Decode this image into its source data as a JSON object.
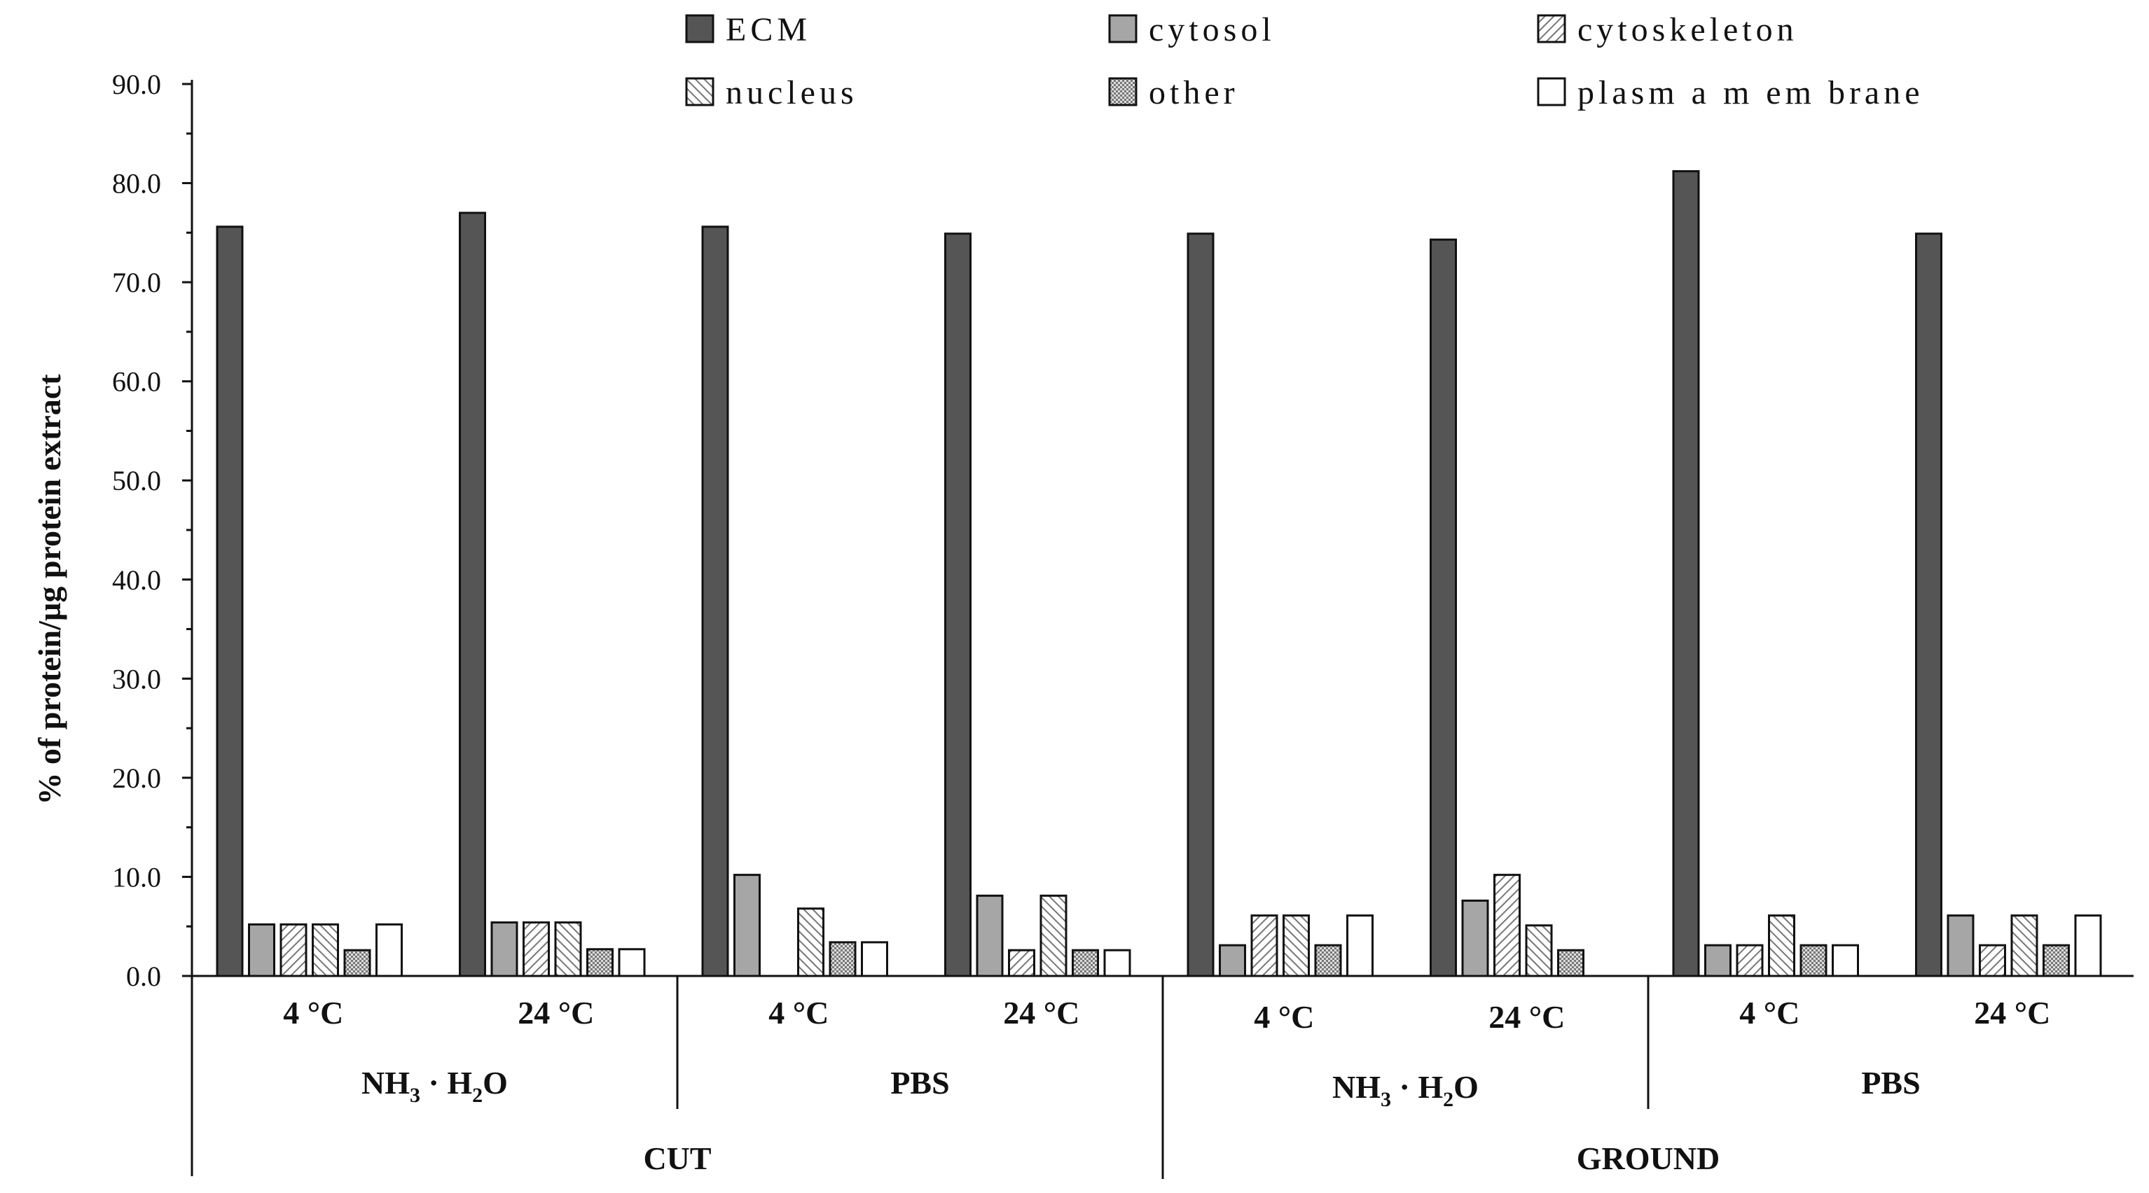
{
  "chart_data": {
    "type": "bar",
    "title": "",
    "xlabel": "",
    "ylabel": "% of protein/µg protein extract",
    "ylim": [
      0,
      90
    ],
    "yticks": [
      "0.0",
      "10.0",
      "20.0",
      "30.0",
      "40.0",
      "50.0",
      "60.0",
      "70.0",
      "80.0",
      "90.0"
    ],
    "grid": false,
    "legend_position": "top",
    "colors": {
      "ecm": "#555555",
      "cytosol": "#a6a6a6",
      "plasma": "#ffffff",
      "stroke": "#111111"
    },
    "categories": [
      "CUT NH3·H2O 4 °C",
      "CUT NH3·H2O 24 °C",
      "CUT PBS 4 °C",
      "CUT PBS 24 °C",
      "GROUND NH3·H2O 4 °C",
      "GROUND NH3·H2O 24 °C",
      "GROUND PBS 4 °C",
      "GROUND PBS 24 °C"
    ],
    "series": [
      {
        "name": "ECM",
        "pattern": "solid-dark",
        "values": [
          75.6,
          77.0,
          75.6,
          74.9,
          74.9,
          74.3,
          81.2,
          74.9
        ]
      },
      {
        "name": "cytosol",
        "pattern": "solid-gray",
        "values": [
          5.2,
          5.4,
          10.2,
          8.1,
          3.1,
          7.6,
          3.1,
          6.1
        ]
      },
      {
        "name": "cytoskeleton",
        "pattern": "diagonal",
        "values": [
          5.2,
          5.4,
          0.0,
          2.6,
          6.1,
          10.2,
          3.1,
          3.1
        ]
      },
      {
        "name": "nucleus",
        "pattern": "back-diagonal",
        "values": [
          5.2,
          5.4,
          6.8,
          8.1,
          6.1,
          5.1,
          6.1,
          6.1
        ]
      },
      {
        "name": "other",
        "pattern": "dots",
        "values": [
          2.6,
          2.7,
          3.4,
          2.6,
          3.1,
          2.6,
          3.1,
          3.1
        ]
      },
      {
        "name": "plasm a m em brane",
        "pattern": "white",
        "values": [
          5.2,
          2.7,
          3.4,
          2.6,
          6.1,
          0.0,
          3.1,
          6.1
        ]
      }
    ],
    "legend_labels": [
      "ECM",
      "cytosol",
      "cytoskeleton",
      "nucleus",
      "other",
      "plasm a m em brane"
    ],
    "x_axis_levels": {
      "temperatures": [
        "4 °C",
        "24 °C",
        "4 °C",
        "24 °C",
        "4 °C",
        "24 °C",
        "4 °C",
        "24 °C"
      ],
      "solutions": [
        {
          "main": "NH",
          "sub1": "3",
          "mid": " · H",
          "sub2": "2",
          "end": "O"
        },
        {
          "main": "PBS",
          "sub1": "",
          "mid": "",
          "sub2": "",
          "end": ""
        },
        {
          "main": "NH",
          "sub1": "3",
          "mid": " · H",
          "sub2": "2",
          "end": "O"
        },
        {
          "main": "PBS",
          "sub1": "",
          "mid": "",
          "sub2": "",
          "end": ""
        }
      ],
      "processing": [
        "CUT",
        "GROUND"
      ]
    }
  }
}
